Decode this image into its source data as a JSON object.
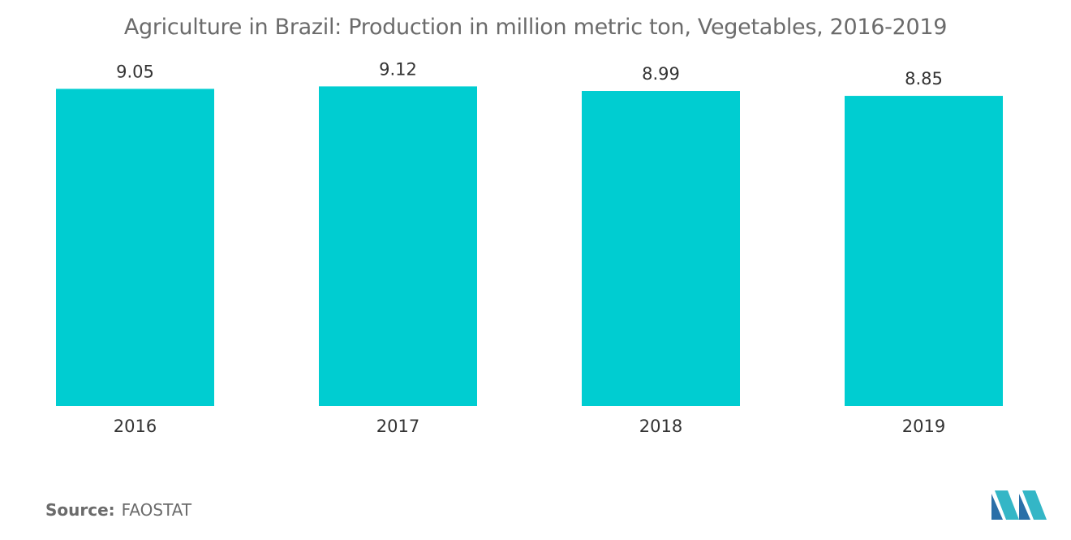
{
  "chart_data": {
    "type": "bar",
    "title": "Agriculture in Brazil: Production in million metric ton, Vegetables, 2016-2019",
    "categories": [
      "2016",
      "2017",
      "2018",
      "2019"
    ],
    "values": [
      9.05,
      9.12,
      8.99,
      8.85
    ],
    "value_labels": [
      "9.05",
      "9.12",
      "8.99",
      "8.85"
    ],
    "ylim": [
      0,
      9.5
    ],
    "grid": false,
    "bar_color": "#00cdd1"
  },
  "source": {
    "label": "Source:",
    "value": "FAOSTAT"
  }
}
